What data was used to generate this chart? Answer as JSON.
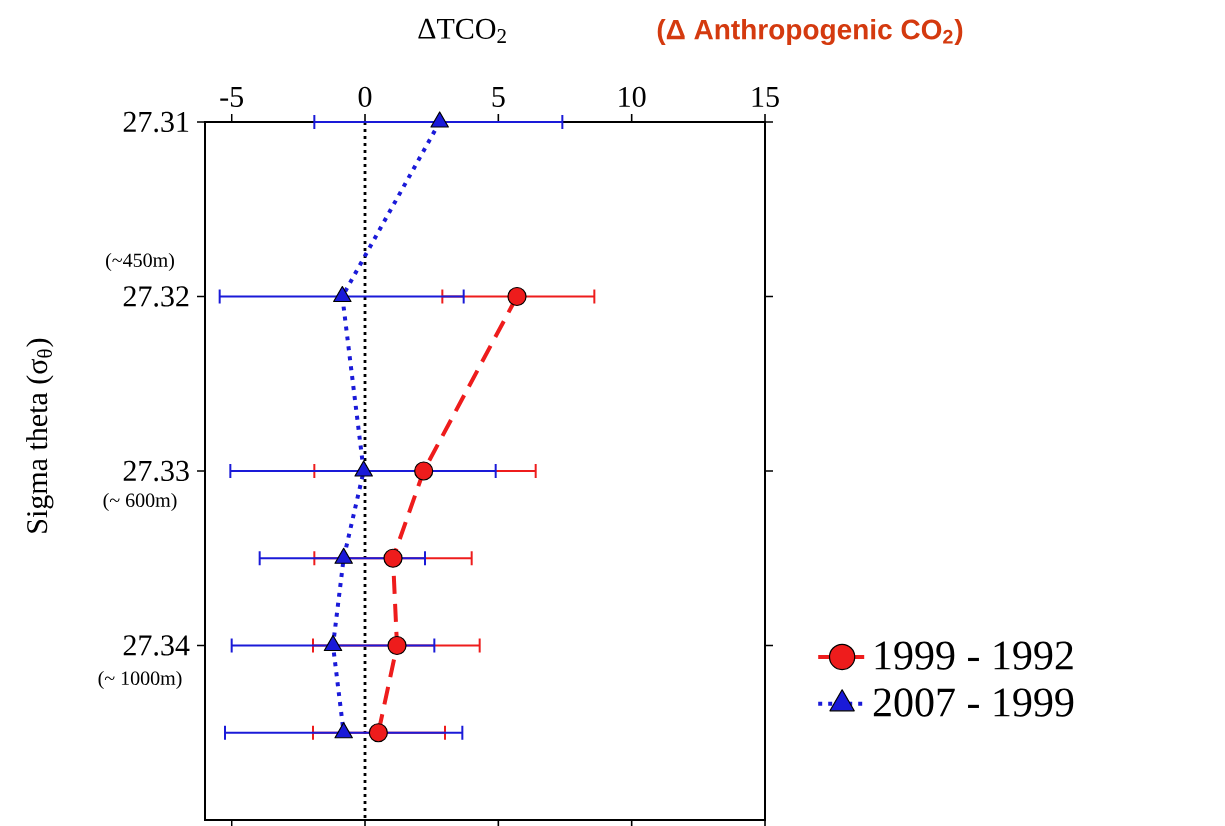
{
  "chart_data": {
    "type": "line",
    "xlabel": "ΔTCO$_{2}$",
    "ylabel": "Sigma theta (σ$_{θ}$)",
    "annotations": [
      "(Δ Anthropogenic CO$_{2}$)",
      "(~450m)",
      "(~ 600m)",
      "(~ 1000m)"
    ],
    "xlim": [
      -6,
      15
    ],
    "xticks": [
      -5,
      0,
      5,
      10,
      15
    ],
    "ylim": [
      27.35,
      27.31
    ],
    "yticks": [
      27.31,
      27.32,
      27.33,
      27.34
    ],
    "grid": false,
    "legend": "right",
    "ref_lines": [
      {
        "axis": "x",
        "value": 0,
        "color": "#000000",
        "line_style": "dotted"
      }
    ],
    "series": [
      {
        "name": "1999 - 1992",
        "color": "#ee1c1c",
        "marker": "circle",
        "line_style": "dashed",
        "x": [
          5.7,
          2.2,
          1.05,
          1.2,
          0.5
        ],
        "values": [
          27.32,
          27.33,
          27.335,
          27.34,
          27.345
        ],
        "xerrors": [
          [
            2.9,
            8.6
          ],
          [
            -1.9,
            6.4
          ],
          [
            -1.9,
            4.0
          ],
          [
            -1.95,
            4.3
          ],
          [
            -1.95,
            3.0
          ]
        ]
      },
      {
        "name": "2007 - 1999",
        "color": "#1a1ad8",
        "marker": "triangle",
        "line_style": "dotted",
        "x": [
          2.8,
          -0.85,
          -0.05,
          -0.8,
          -1.2,
          -0.8
        ],
        "values": [
          27.31,
          27.32,
          27.33,
          27.335,
          27.34,
          27.345
        ],
        "xerrors": [
          [
            -1.9,
            7.4
          ],
          [
            -5.45,
            3.7
          ],
          [
            -5.05,
            4.9
          ],
          [
            -3.95,
            2.25
          ],
          [
            -5.0,
            2.6
          ],
          [
            -5.25,
            3.65
          ]
        ]
      }
    ]
  }
}
